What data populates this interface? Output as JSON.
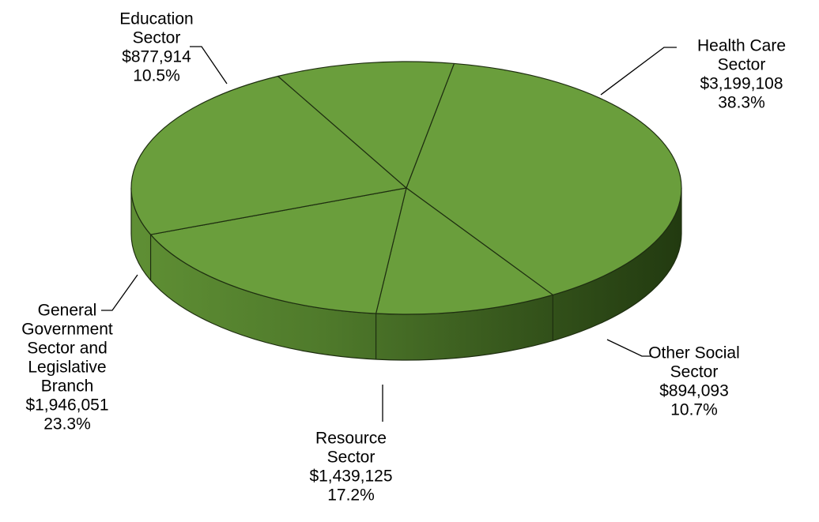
{
  "chart_data": {
    "type": "pie",
    "style": "3d",
    "color": "#6a9e3c",
    "slices": [
      {
        "name_lines": [
          "Health Care",
          "Sector"
        ],
        "value": 3199108,
        "value_label": "$3,199,108",
        "percent": 38.3,
        "percent_label": "38.3%"
      },
      {
        "name_lines": [
          "Other Social",
          "Sector"
        ],
        "value": 894093,
        "value_label": "$894,093",
        "percent": 10.7,
        "percent_label": "10.7%"
      },
      {
        "name_lines": [
          "Resource",
          "Sector"
        ],
        "value": 1439125,
        "value_label": "$1,439,125",
        "percent": 17.2,
        "percent_label": "17.2%"
      },
      {
        "name_lines": [
          "General",
          "Government",
          "Sector and",
          "Legislative",
          "Branch"
        ],
        "value": 1946051,
        "value_label": "$1,946,051",
        "percent": 23.3,
        "percent_label": "23.3%"
      },
      {
        "name_lines": [
          "Education",
          "Sector"
        ],
        "value": 877914,
        "value_label": "$877,914",
        "percent": 10.5,
        "percent_label": "10.5%"
      }
    ]
  }
}
